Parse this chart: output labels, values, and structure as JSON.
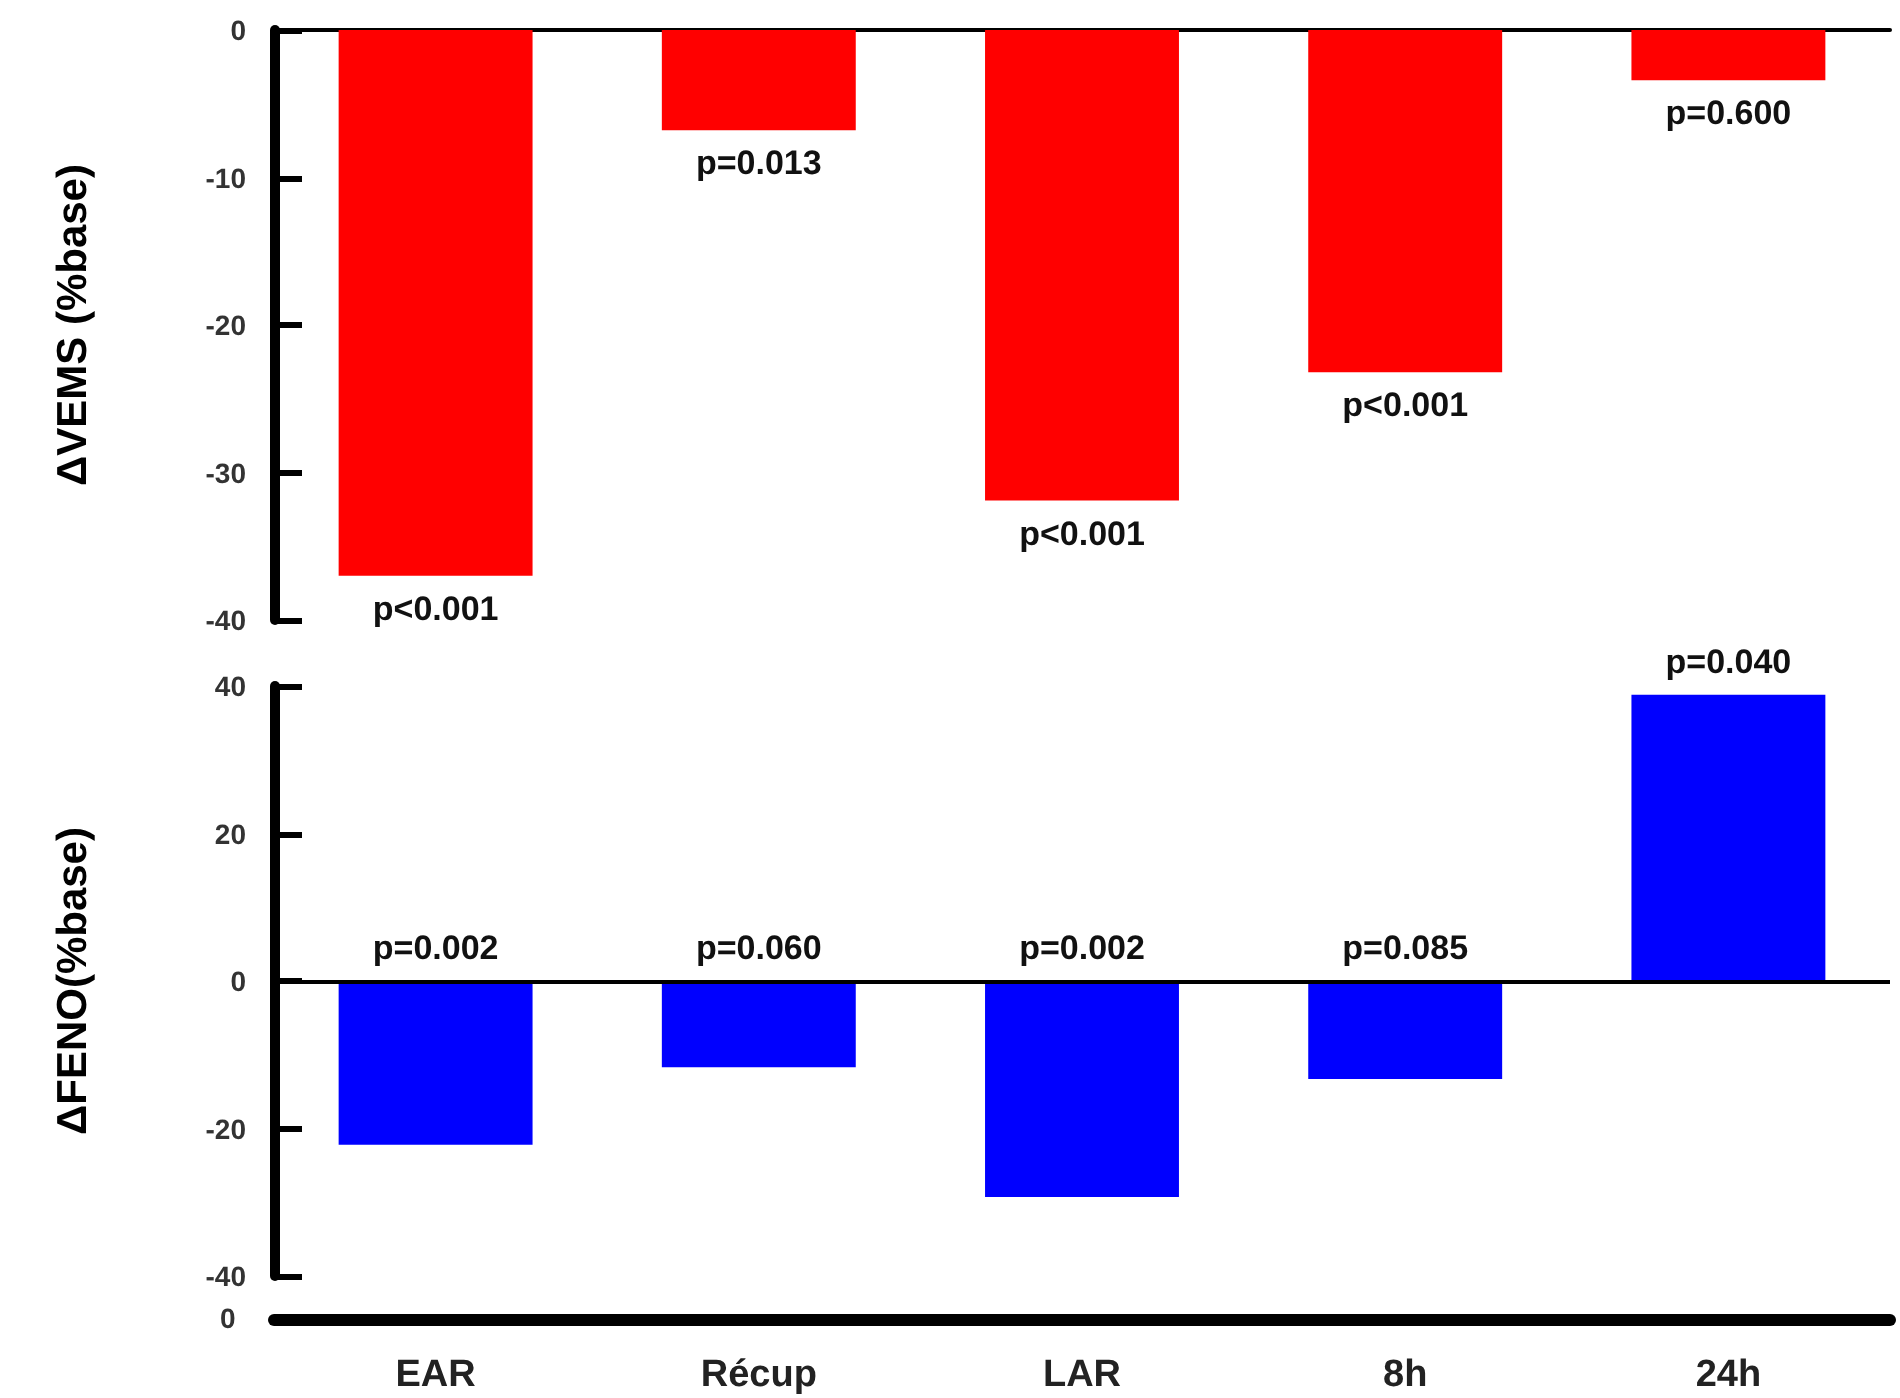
{
  "chart_data": [
    {
      "type": "bar",
      "ylabel": "ΔVEMS (%base)",
      "categories": [
        "EAR",
        "Récup",
        "LAR",
        "8h",
        "24h"
      ],
      "tick_labels": "y",
      "series": [
        {
          "color": "#ff0000",
          "values": [
            -37.0,
            -6.8,
            -31.9,
            -23.2,
            -3.4
          ]
        }
      ],
      "annotations": [
        {
          "text": "p<0.001",
          "x": "EAR",
          "y": -37.0
        },
        {
          "text": "p=0.013",
          "x": "Récup",
          "y": -6.8
        },
        {
          "text": "p<0.001",
          "x": "LAR",
          "y": -31.9
        },
        {
          "text": "p<0.001",
          "x": "8h",
          "y": -23.2
        },
        {
          "text": "p=0.600",
          "x": "24h",
          "y": -3.4
        }
      ],
      "ylim": [
        -40,
        0
      ],
      "yticks": [
        -40,
        -30,
        -20,
        -10,
        0
      ]
    },
    {
      "type": "bar",
      "ylabel": "ΔFENO(%base)",
      "categories": [
        "EAR",
        "Récup",
        "LAR",
        "8h",
        "24h"
      ],
      "series": [
        {
          "color": "#0000ff",
          "values": [
            -22.2,
            -11.7,
            -29.3,
            -13.3,
            38.8
          ]
        }
      ],
      "ylim": [
        -40,
        40
      ],
      "yticks": [
        -40,
        -20,
        0,
        20,
        40
      ],
      "ref_lines": [
        {
          "axis": "y",
          "value": 0,
          "color": "#000000"
        }
      ],
      "annotations": [
        {
          "text": "p=0.002",
          "x": "EAR",
          "y": 0
        },
        {
          "text": "p=0.060",
          "x": "Récup",
          "y": 0
        },
        {
          "text": "p=0.002",
          "x": "LAR",
          "y": 0
        },
        {
          "text": "p=0.085",
          "x": "8h",
          "y": 0
        },
        {
          "text": "p=0.040",
          "x": "24h",
          "y": 38.8
        },
        "0"
      ]
    }
  ]
}
